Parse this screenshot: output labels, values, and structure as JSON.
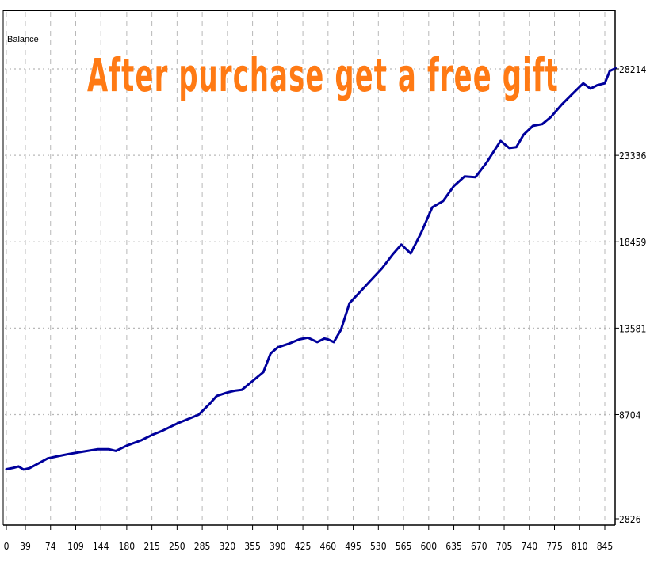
{
  "chart_data": {
    "type": "line",
    "ylabel": "Balance",
    "title": "",
    "xlabel": "",
    "xlim": [
      0,
      860
    ],
    "ylim": [
      2826,
      28214
    ],
    "x_ticks": [
      0,
      39,
      74,
      109,
      144,
      180,
      215,
      250,
      285,
      320,
      355,
      390,
      425,
      460,
      495,
      530,
      565,
      600,
      635,
      670,
      705,
      740,
      775,
      810,
      845
    ],
    "y_ticks": [
      2826,
      8704,
      13581,
      18459,
      23336,
      28214
    ],
    "y_tick_labels": [
      "2826",
      "8704",
      "13581",
      "18459",
      "23336",
      "28214"
    ],
    "grid": true,
    "series": [
      {
        "color": "#00009c",
        "x": [
          0,
          15,
          25,
          35,
          45,
          55,
          70,
          85,
          100,
          120,
          140,
          155,
          165,
          180,
          200,
          215,
          230,
          250,
          265,
          280,
          295,
          305,
          320,
          330,
          340,
          355,
          370,
          380,
          390,
          405,
          420,
          432,
          445,
          455,
          460,
          468,
          478,
          490,
          505,
          520,
          535,
          550,
          562,
          575,
          590,
          605,
          620,
          635,
          650,
          665,
          680,
          700,
          712,
          722,
          732,
          745,
          758,
          770,
          785,
          800,
          815,
          825,
          835,
          845,
          852,
          860
        ],
        "y": [
          5620,
          5700,
          5780,
          5600,
          5680,
          5900,
          6230,
          6360,
          6480,
          6620,
          6750,
          6750,
          6650,
          6950,
          7250,
          7550,
          7800,
          8200,
          8450,
          8700,
          9300,
          9750,
          9950,
          10050,
          10100,
          10600,
          11100,
          12150,
          12500,
          12700,
          12950,
          13050,
          12800,
          13000,
          12950,
          12800,
          13500,
          15000,
          15650,
          16300,
          16950,
          17750,
          18300,
          17800,
          19000,
          20400,
          20750,
          21600,
          22150,
          22100,
          22900,
          24150,
          23750,
          23800,
          24500,
          25000,
          25100,
          25500,
          26200,
          26800,
          27400,
          27100,
          27300,
          27400,
          28100,
          28250
        ]
      }
    ]
  },
  "watermark": {
    "text": "After purchase get a free gift",
    "color": "#ff7a14"
  }
}
